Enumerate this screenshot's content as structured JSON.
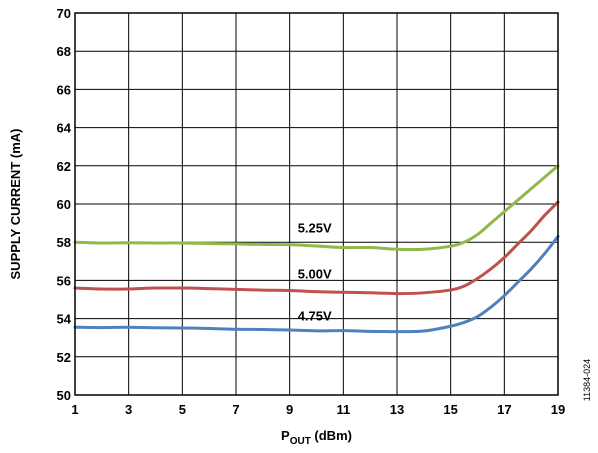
{
  "chart_data": {
    "type": "line",
    "title": "",
    "xlabel_main": "P",
    "xlabel_sub": "OUT",
    "xlabel_unit": " (dBm)",
    "ylabel": "SUPPLY CURRENT (mA)",
    "xlim": [
      1,
      19
    ],
    "ylim": [
      50,
      70
    ],
    "xticks": [
      "1",
      "3",
      "5",
      "7",
      "9",
      "11",
      "13",
      "15",
      "17",
      "19"
    ],
    "yticks": [
      "50",
      "52",
      "54",
      "56",
      "58",
      "60",
      "62",
      "64",
      "66",
      "68",
      "70"
    ],
    "grid": true,
    "figure_id": "11384-024",
    "series": [
      {
        "name": "5.25V",
        "color": "#8fb94b",
        "x": [
          1,
          2,
          3,
          4,
          5,
          6,
          7,
          8,
          9,
          10,
          11,
          12,
          13,
          14,
          15,
          15.5,
          16,
          16.5,
          17,
          17.5,
          18,
          18.5,
          19
        ],
        "y": [
          58.0,
          57.96,
          57.97,
          57.96,
          57.96,
          57.93,
          57.91,
          57.88,
          57.87,
          57.8,
          57.72,
          57.72,
          57.63,
          57.63,
          57.79,
          58.0,
          58.4,
          59.0,
          59.6,
          60.2,
          60.8,
          61.4,
          62.0
        ]
      },
      {
        "name": "5.00V",
        "color": "#c0504d",
        "x": [
          1,
          2,
          3,
          4,
          5,
          6,
          7,
          8,
          9,
          10,
          11,
          12,
          13,
          14,
          15,
          15.5,
          16,
          16.5,
          17,
          17.5,
          18,
          18.5,
          19
        ],
        "y": [
          55.6,
          55.55,
          55.55,
          55.6,
          55.6,
          55.57,
          55.53,
          55.49,
          55.47,
          55.41,
          55.38,
          55.35,
          55.31,
          55.35,
          55.5,
          55.7,
          56.1,
          56.6,
          57.2,
          57.9,
          58.6,
          59.4,
          60.1
        ]
      },
      {
        "name": "4.75V",
        "color": "#4f81bd",
        "x": [
          1,
          2,
          3,
          4,
          5,
          6,
          7,
          8,
          9,
          10,
          11,
          12,
          13,
          14,
          15,
          15.5,
          16,
          16.5,
          17,
          17.5,
          18,
          18.5,
          19
        ],
        "y": [
          53.55,
          53.53,
          53.55,
          53.52,
          53.51,
          53.48,
          53.44,
          53.43,
          53.4,
          53.36,
          53.37,
          53.33,
          53.32,
          53.35,
          53.6,
          53.8,
          54.1,
          54.6,
          55.2,
          55.9,
          56.6,
          57.4,
          58.3
        ]
      }
    ],
    "annotations": [
      {
        "text": "5.25V",
        "x": 9.3,
        "y": 58.5
      },
      {
        "text": "5.00V",
        "x": 9.3,
        "y": 56.1
      },
      {
        "text": "4.75V",
        "x": 9.3,
        "y": 53.9
      }
    ]
  }
}
